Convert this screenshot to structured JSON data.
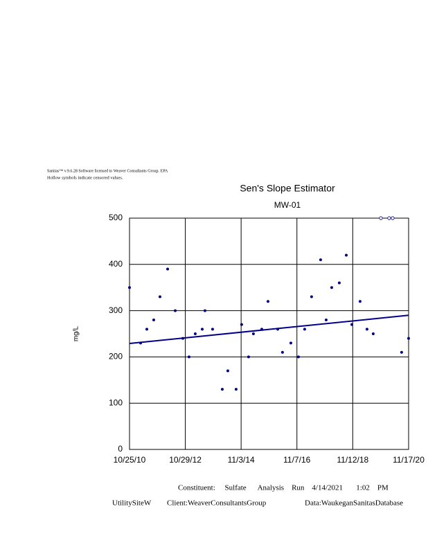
{
  "header": {
    "line1": "Sanitas™ v.9.6.28 Software licensed to Weaver Consultants Group. EPA",
    "line2": "Hollow symbols indicate censored values."
  },
  "chart_data": {
    "type": "scatter",
    "title": "Sen's Slope Estimator",
    "subtitle": "MW-01",
    "y_label": "mg/L",
    "x": [
      "10/25/10",
      "3/20/11",
      "6/10/11",
      "9/9/11",
      "11/30/11",
      "3/10/12",
      "6/18/12",
      "9/26/12",
      "12/17/12",
      "3/9/13",
      "6/9/13",
      "7/15/13",
      "10/23/13",
      "2/28/14",
      "5/12/14",
      "8/29/14",
      "11/10/14",
      "2/9/15",
      "4/14/15",
      "8/2/15",
      "10/23/15",
      "2/28/16",
      "5/1/16",
      "8/19/16",
      "11/27/16",
      "2/17/17",
      "5/19/17",
      "9/15/17",
      "11/27/17",
      "2/8/18",
      "5/19/18",
      "8/19/18",
      "10/31/18",
      "2/17/19",
      "5/19/19",
      "8/9/19",
      "11/18/19",
      "3/6/20",
      "4/21/20",
      "8/17/20",
      "11/17/20"
    ],
    "series": [
      {
        "name": "MW-01",
        "color": "#000080",
        "values": [
          350,
          230,
          260,
          280,
          330,
          390,
          300,
          240,
          200,
          250,
          260,
          300,
          260,
          130,
          170,
          130,
          270,
          200,
          250,
          260,
          320,
          260,
          210,
          230,
          200,
          260,
          330,
          410,
          280,
          350,
          360,
          420,
          270,
          320,
          260,
          250,
          500,
          500,
          500,
          210,
          240
        ],
        "censored": [
          false,
          false,
          false,
          false,
          false,
          false,
          false,
          false,
          false,
          false,
          false,
          false,
          false,
          false,
          false,
          false,
          false,
          false,
          false,
          false,
          false,
          false,
          false,
          false,
          false,
          false,
          false,
          false,
          false,
          false,
          false,
          false,
          false,
          false,
          false,
          false,
          true,
          true,
          true,
          false,
          false
        ]
      }
    ],
    "trend": {
      "x": [
        "10/25/10",
        "11/17/20"
      ],
      "values": [
        229,
        290
      ],
      "color": "#00008b"
    },
    "xlim": [
      "10/25/10",
      "11/17/20"
    ],
    "xticks": [
      "10/25/10",
      "10/29/12",
      "11/3/14",
      "11/7/16",
      "11/12/18",
      "11/17/20"
    ],
    "ylim": [
      0,
      500
    ],
    "yticks": [
      0,
      100,
      200,
      300,
      400,
      500
    ],
    "grid": true
  },
  "footer": {
    "run": "Constituent:     Sulfate      Analysis    Run    4/14/2021       1:02    PM",
    "site": "UtilitySiteW",
    "client": "Client:WeaverConsultantsGroup",
    "data": "Data:WaukeganSanitasDatabase"
  }
}
